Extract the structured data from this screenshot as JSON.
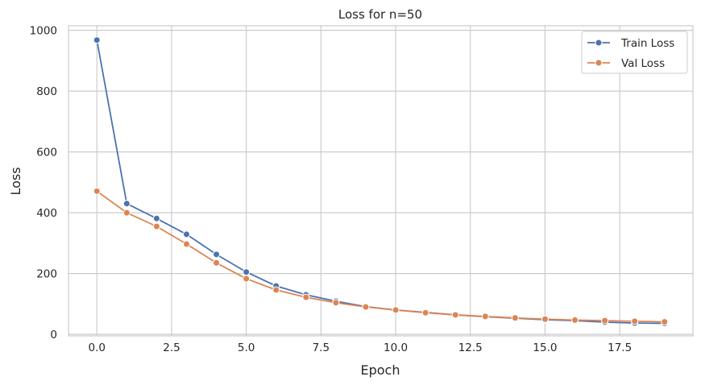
{
  "chart_data": {
    "type": "line",
    "title": "Loss for n=50",
    "xlabel": "Epoch",
    "ylabel": "Loss",
    "xlim": [
      -0.95,
      19.95
    ],
    "ylim": [
      -5,
      1015
    ],
    "xticks": [
      0,
      2.5,
      5,
      7.5,
      10,
      12.5,
      15,
      17.5
    ],
    "xtick_labels": [
      "0.0",
      "2.5",
      "5.0",
      "7.5",
      "10.0",
      "12.5",
      "15.0",
      "17.5"
    ],
    "yticks": [
      0,
      200,
      400,
      600,
      800,
      1000
    ],
    "ytick_labels": [
      "0",
      "200",
      "400",
      "600",
      "800",
      "1000"
    ],
    "grid": true,
    "legend_position": "top-right",
    "x": [
      0,
      1,
      2,
      3,
      4,
      5,
      6,
      7,
      8,
      9,
      10,
      11,
      12,
      13,
      14,
      15,
      16,
      17,
      18,
      19
    ],
    "series": [
      {
        "name": "Train Loss",
        "color": "#4c72b0",
        "values": [
          968,
          430,
          381,
          329,
          263,
          205,
          159,
          130,
          109,
          91,
          80,
          72,
          64,
          58,
          53,
          48,
          45,
          40,
          37,
          36
        ]
      },
      {
        "name": "Val Loss",
        "color": "#dd8452",
        "values": [
          471,
          400,
          355,
          297,
          235,
          183,
          146,
          122,
          104,
          90,
          80,
          71,
          64,
          59,
          54,
          50,
          47,
          45,
          43,
          41
        ]
      }
    ]
  }
}
